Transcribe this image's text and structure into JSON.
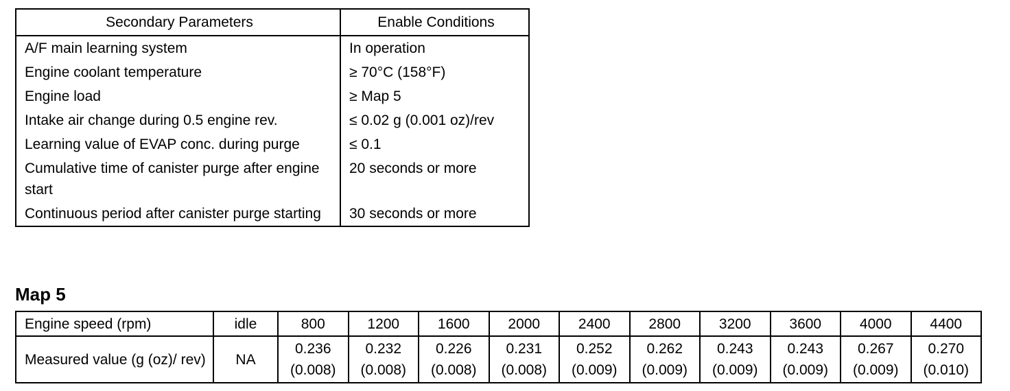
{
  "table1": {
    "header": [
      "Secondary Parameters",
      "Enable Conditions"
    ],
    "rows": [
      [
        "A/F main learning system",
        "In operation"
      ],
      [
        "Engine coolant temperature",
        "≥ 70°C (158°F)"
      ],
      [
        "Engine load",
        "≥ Map 5"
      ],
      [
        "Intake air change during 0.5 engine rev.",
        "≤ 0.02 g (0.001 oz)/rev"
      ],
      [
        "Learning value of EVAP conc. during purge",
        "≤ 0.1"
      ],
      [
        "Cumulative time of canister purge after engine start",
        "20 seconds or more"
      ],
      [
        "Continuous period after canister purge starting",
        "30 seconds or more"
      ]
    ]
  },
  "map_title": "Map 5",
  "table2": {
    "speed_label": "Engine speed (rpm)",
    "speeds": [
      "idle",
      "800",
      "1200",
      "1600",
      "2000",
      "2400",
      "2800",
      "3200",
      "3600",
      "4000",
      "4400"
    ],
    "measured_label": "Measured value (g (oz)/ rev)",
    "measured": [
      {
        "g": "NA"
      },
      {
        "g": "0.236",
        "oz": "(0.008)"
      },
      {
        "g": "0.232",
        "oz": "(0.008)"
      },
      {
        "g": "0.226",
        "oz": "(0.008)"
      },
      {
        "g": "0.231",
        "oz": "(0.008)"
      },
      {
        "g": "0.252",
        "oz": "(0.009)"
      },
      {
        "g": "0.262",
        "oz": "(0.009)"
      },
      {
        "g": "0.243",
        "oz": "(0.009)"
      },
      {
        "g": "0.243",
        "oz": "(0.009)"
      },
      {
        "g": "0.267",
        "oz": "(0.009)"
      },
      {
        "g": "0.270",
        "oz": "(0.010)"
      }
    ]
  }
}
